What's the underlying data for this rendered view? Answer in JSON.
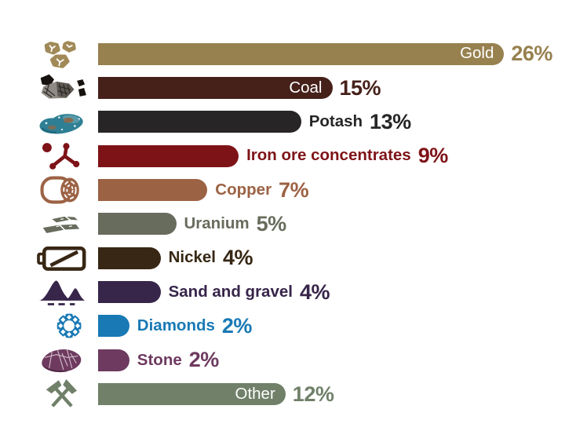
{
  "chart_data": {
    "type": "bar",
    "orientation": "horizontal",
    "unit": "%",
    "grid": false,
    "legend": false,
    "categories": [
      "Gold",
      "Coal",
      "Potash",
      "Iron ore concentrates",
      "Copper",
      "Uranium",
      "Nickel",
      "Sand and gravel",
      "Diamonds",
      "Stone",
      "Other"
    ],
    "values": [
      26,
      15,
      13,
      9,
      7,
      5,
      4,
      4,
      2,
      2,
      12
    ],
    "items": [
      {
        "label": "Gold",
        "value": 26,
        "display": "26%",
        "color": "#97814F",
        "label_inside": true,
        "icon": "gold-nuggets-icon"
      },
      {
        "label": "Coal",
        "value": 15,
        "display": "15%",
        "color": "#46211A",
        "label_inside": true,
        "icon": "coal-chunks-icon"
      },
      {
        "label": "Potash",
        "value": 13,
        "display": "13%",
        "color": "#272525",
        "label_inside": false,
        "icon": "potash-ore-icon"
      },
      {
        "label": "Iron ore concentrates",
        "value": 9,
        "display": "9%",
        "color": "#7E1317",
        "label_inside": false,
        "icon": "iron-ore-molecule-icon"
      },
      {
        "label": "Copper",
        "value": 7,
        "display": "7%",
        "color": "#9C6244",
        "label_inside": false,
        "icon": "copper-coil-icon"
      },
      {
        "label": "Uranium",
        "value": 5,
        "display": "5%",
        "color": "#676C5D",
        "label_inside": false,
        "icon": "uranium-ingots-icon"
      },
      {
        "label": "Nickel",
        "value": 4,
        "display": "4%",
        "color": "#372714",
        "label_inside": false,
        "icon": "nickel-battery-icon"
      },
      {
        "label": "Sand and gravel",
        "value": 4,
        "display": "4%",
        "color": "#37254A",
        "label_inside": false,
        "icon": "sand-gravel-mounds-icon"
      },
      {
        "label": "Diamonds",
        "value": 2,
        "display": "2%",
        "color": "#1979B5",
        "label_inside": false,
        "icon": "diamond-icon"
      },
      {
        "label": "Stone",
        "value": 2,
        "display": "2%",
        "color": "#6E3A5F",
        "label_inside": false,
        "icon": "stone-boulder-icon"
      },
      {
        "label": "Other",
        "value": 12,
        "display": "12%",
        "color": "#708069",
        "label_inside": true,
        "icon": "crossed-mining-tools-icon"
      }
    ]
  }
}
